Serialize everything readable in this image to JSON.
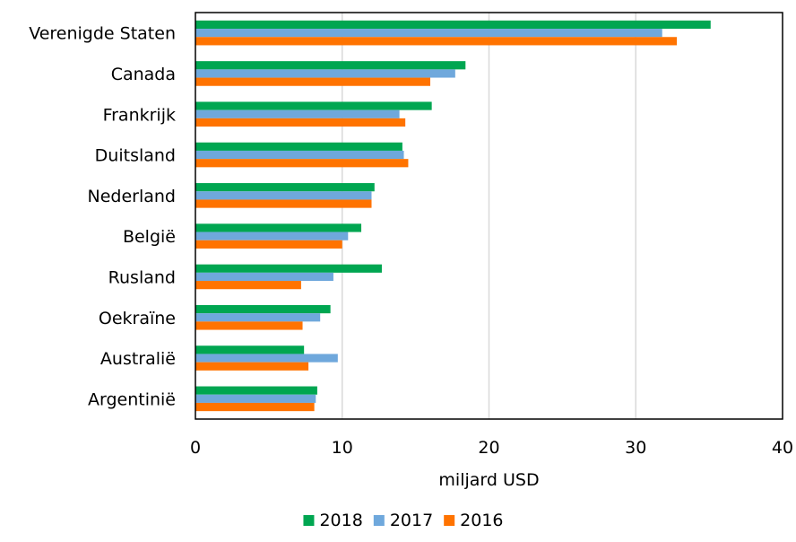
{
  "chart_data": {
    "type": "bar",
    "orientation": "horizontal",
    "categories": [
      "Verenigde Staten",
      "Canada",
      "Frankrijk",
      "Duitsland",
      "Nederland",
      "België",
      "Rusland",
      "Oekraïne",
      "Australië",
      "Argentinië"
    ],
    "series": [
      {
        "name": "2018",
        "color": "#00a651",
        "values": [
          35.1,
          18.4,
          16.1,
          14.1,
          12.2,
          11.3,
          12.7,
          9.2,
          7.4,
          8.3
        ]
      },
      {
        "name": "2017",
        "color": "#6fa8dc",
        "values": [
          31.8,
          17.7,
          13.9,
          14.2,
          12.0,
          10.4,
          9.4,
          8.5,
          9.7,
          8.2
        ]
      },
      {
        "name": "2016",
        "color": "#ff7300",
        "values": [
          32.8,
          16.0,
          14.3,
          14.5,
          12.0,
          10.0,
          7.2,
          7.3,
          7.7,
          8.1
        ]
      }
    ],
    "xlabel": "miljard USD",
    "ylabel": "",
    "xlim": [
      0,
      40
    ],
    "xticks": [
      0,
      10,
      20,
      30,
      40
    ],
    "grid": true,
    "legend_position": "bottom"
  }
}
